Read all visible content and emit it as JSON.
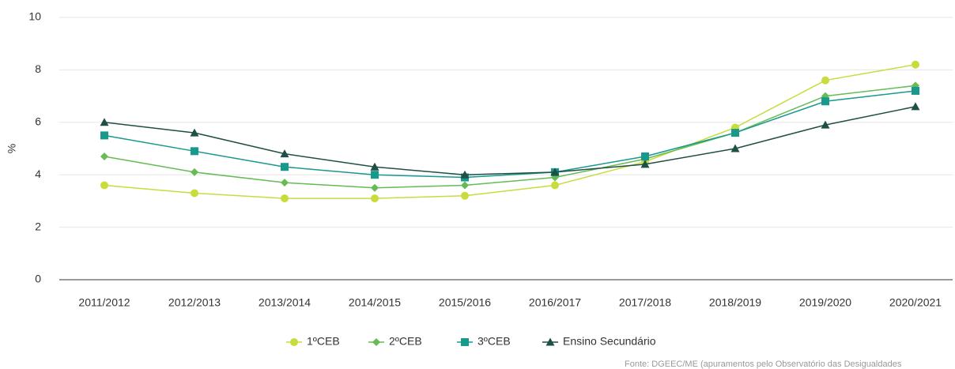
{
  "chart_data": {
    "type": "line",
    "ylabel": "%",
    "categories": [
      "2011/2012",
      "2012/2013",
      "2013/2014",
      "2014/2015",
      "2015/2016",
      "2016/2017",
      "2017/2018",
      "2018/2019",
      "2019/2020",
      "2020/2021"
    ],
    "series": [
      {
        "name": "1ºCEB",
        "color": "#c8dc3c",
        "marker": "circle",
        "values": [
          3.6,
          3.3,
          3.1,
          3.1,
          3.2,
          3.6,
          4.5,
          5.8,
          7.6,
          8.2
        ]
      },
      {
        "name": "2ºCEB",
        "color": "#66bb55",
        "marker": "diamond",
        "values": [
          4.7,
          4.1,
          3.7,
          3.5,
          3.6,
          3.9,
          4.6,
          5.6,
          7.0,
          7.4
        ]
      },
      {
        "name": "3ºCEB",
        "color": "#17998c",
        "marker": "square",
        "values": [
          5.5,
          4.9,
          4.3,
          4.0,
          3.9,
          4.1,
          4.7,
          5.6,
          6.8,
          7.2
        ]
      },
      {
        "name": "Ensino Secundário",
        "color": "#1f4f45",
        "marker": "triangle",
        "values": [
          6.0,
          5.6,
          4.8,
          4.3,
          4.0,
          4.1,
          4.4,
          5.0,
          5.9,
          6.6
        ]
      }
    ],
    "ylim": [
      0,
      10
    ],
    "yticks": [
      0,
      2,
      4,
      6,
      8,
      10
    ],
    "grid": true,
    "legend": "bottom",
    "source": "Fonte: DGEEC/ME (apuramentos pelo Observatório das Desigualdades"
  }
}
